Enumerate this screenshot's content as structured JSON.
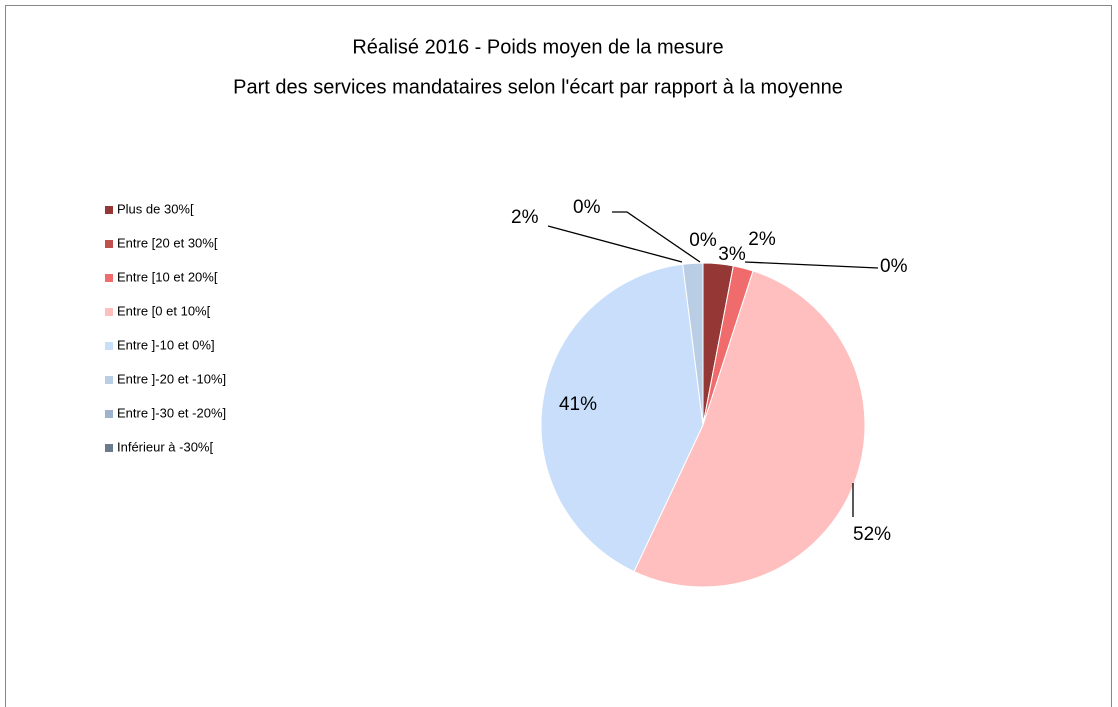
{
  "chart_data": {
    "type": "pie",
    "title": "Réalisé  2016 - Poids moyen de la mesure",
    "subtitle": "Part des services mandataires selon l'écart par rapport à la moyenne",
    "categories": [
      "Plus de 30%[",
      "Entre [20 et 30%[",
      "Entre [10 et 20%[",
      "Entre [0 et 10%[",
      "Entre ]-10 et 0%]",
      "Entre ]-20 et -10%]",
      "Entre ]-30 et -20%]",
      "Inférieur à -30%["
    ],
    "values": [
      3,
      0,
      2,
      52,
      41,
      2,
      0,
      0
    ],
    "value_labels": [
      "3%",
      "0%",
      "2%",
      "52%",
      "41%",
      "2%",
      "0%",
      "0%"
    ],
    "colors": [
      "#953735",
      "#c0504d",
      "#f06b6b",
      "#ffbfbf",
      "#c9defa",
      "#b9cde5",
      "#9fb2d0",
      "#6b7a8c"
    ],
    "legend": "left"
  }
}
